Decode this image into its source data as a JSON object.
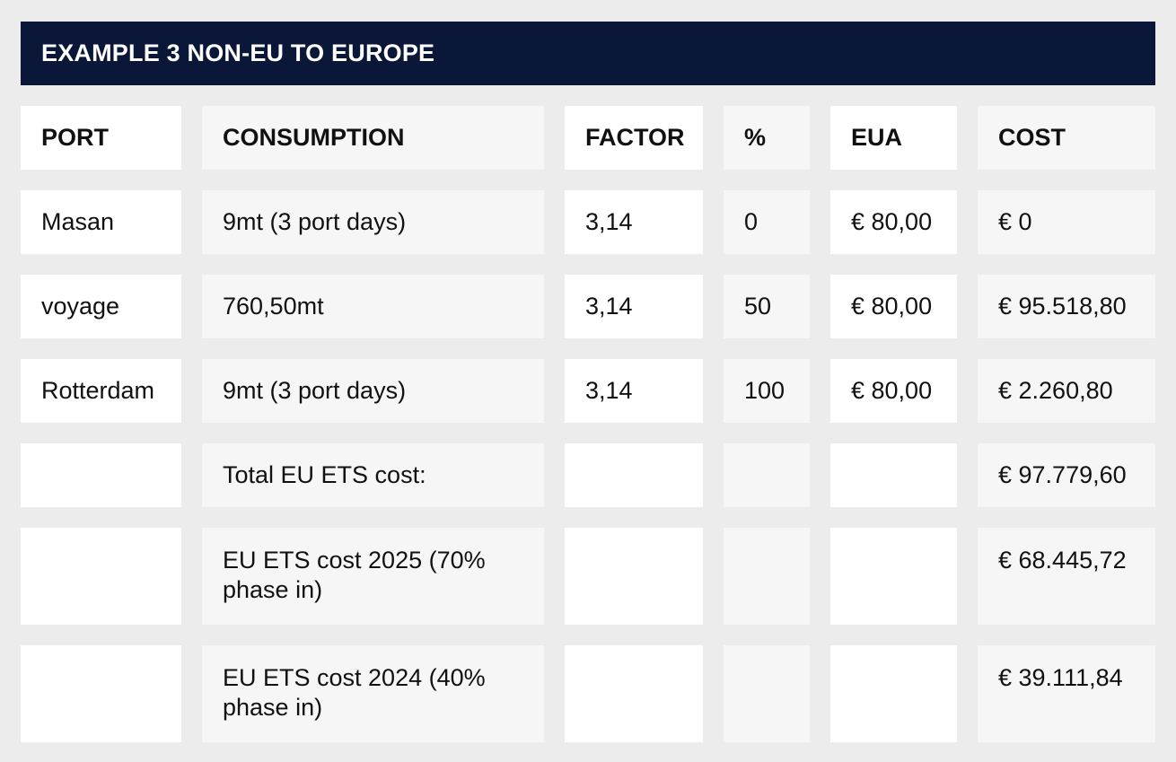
{
  "title": "EXAMPLE 3 NON-EU TO EUROPE",
  "headers": [
    "PORT",
    "CONSUMPTION",
    "FACTOR",
    "%",
    "EUA",
    "COST"
  ],
  "rows": [
    [
      "Masan",
      "9mt (3 port days)",
      "3,14",
      "0",
      "€ 80,00",
      "€ 0"
    ],
    [
      "voyage",
      "760,50mt",
      "3,14",
      "50",
      "€ 80,00",
      "€ 95.518,80"
    ],
    [
      "Rotterdam",
      "9mt (3 port days)",
      "3,14",
      "100",
      "€ 80,00",
      "€ 2.260,80"
    ],
    [
      "",
      "Total EU ETS cost:",
      "",
      "",
      "",
      "€ 97.779,60"
    ],
    [
      "",
      "EU ETS cost 2025 (70%\nphase in)",
      "",
      "",
      "",
      "€ 68.445,72"
    ],
    [
      "",
      "EU ETS cost 2024 (40%\nphase in)",
      "",
      "",
      "",
      "€ 39.111,84"
    ]
  ]
}
